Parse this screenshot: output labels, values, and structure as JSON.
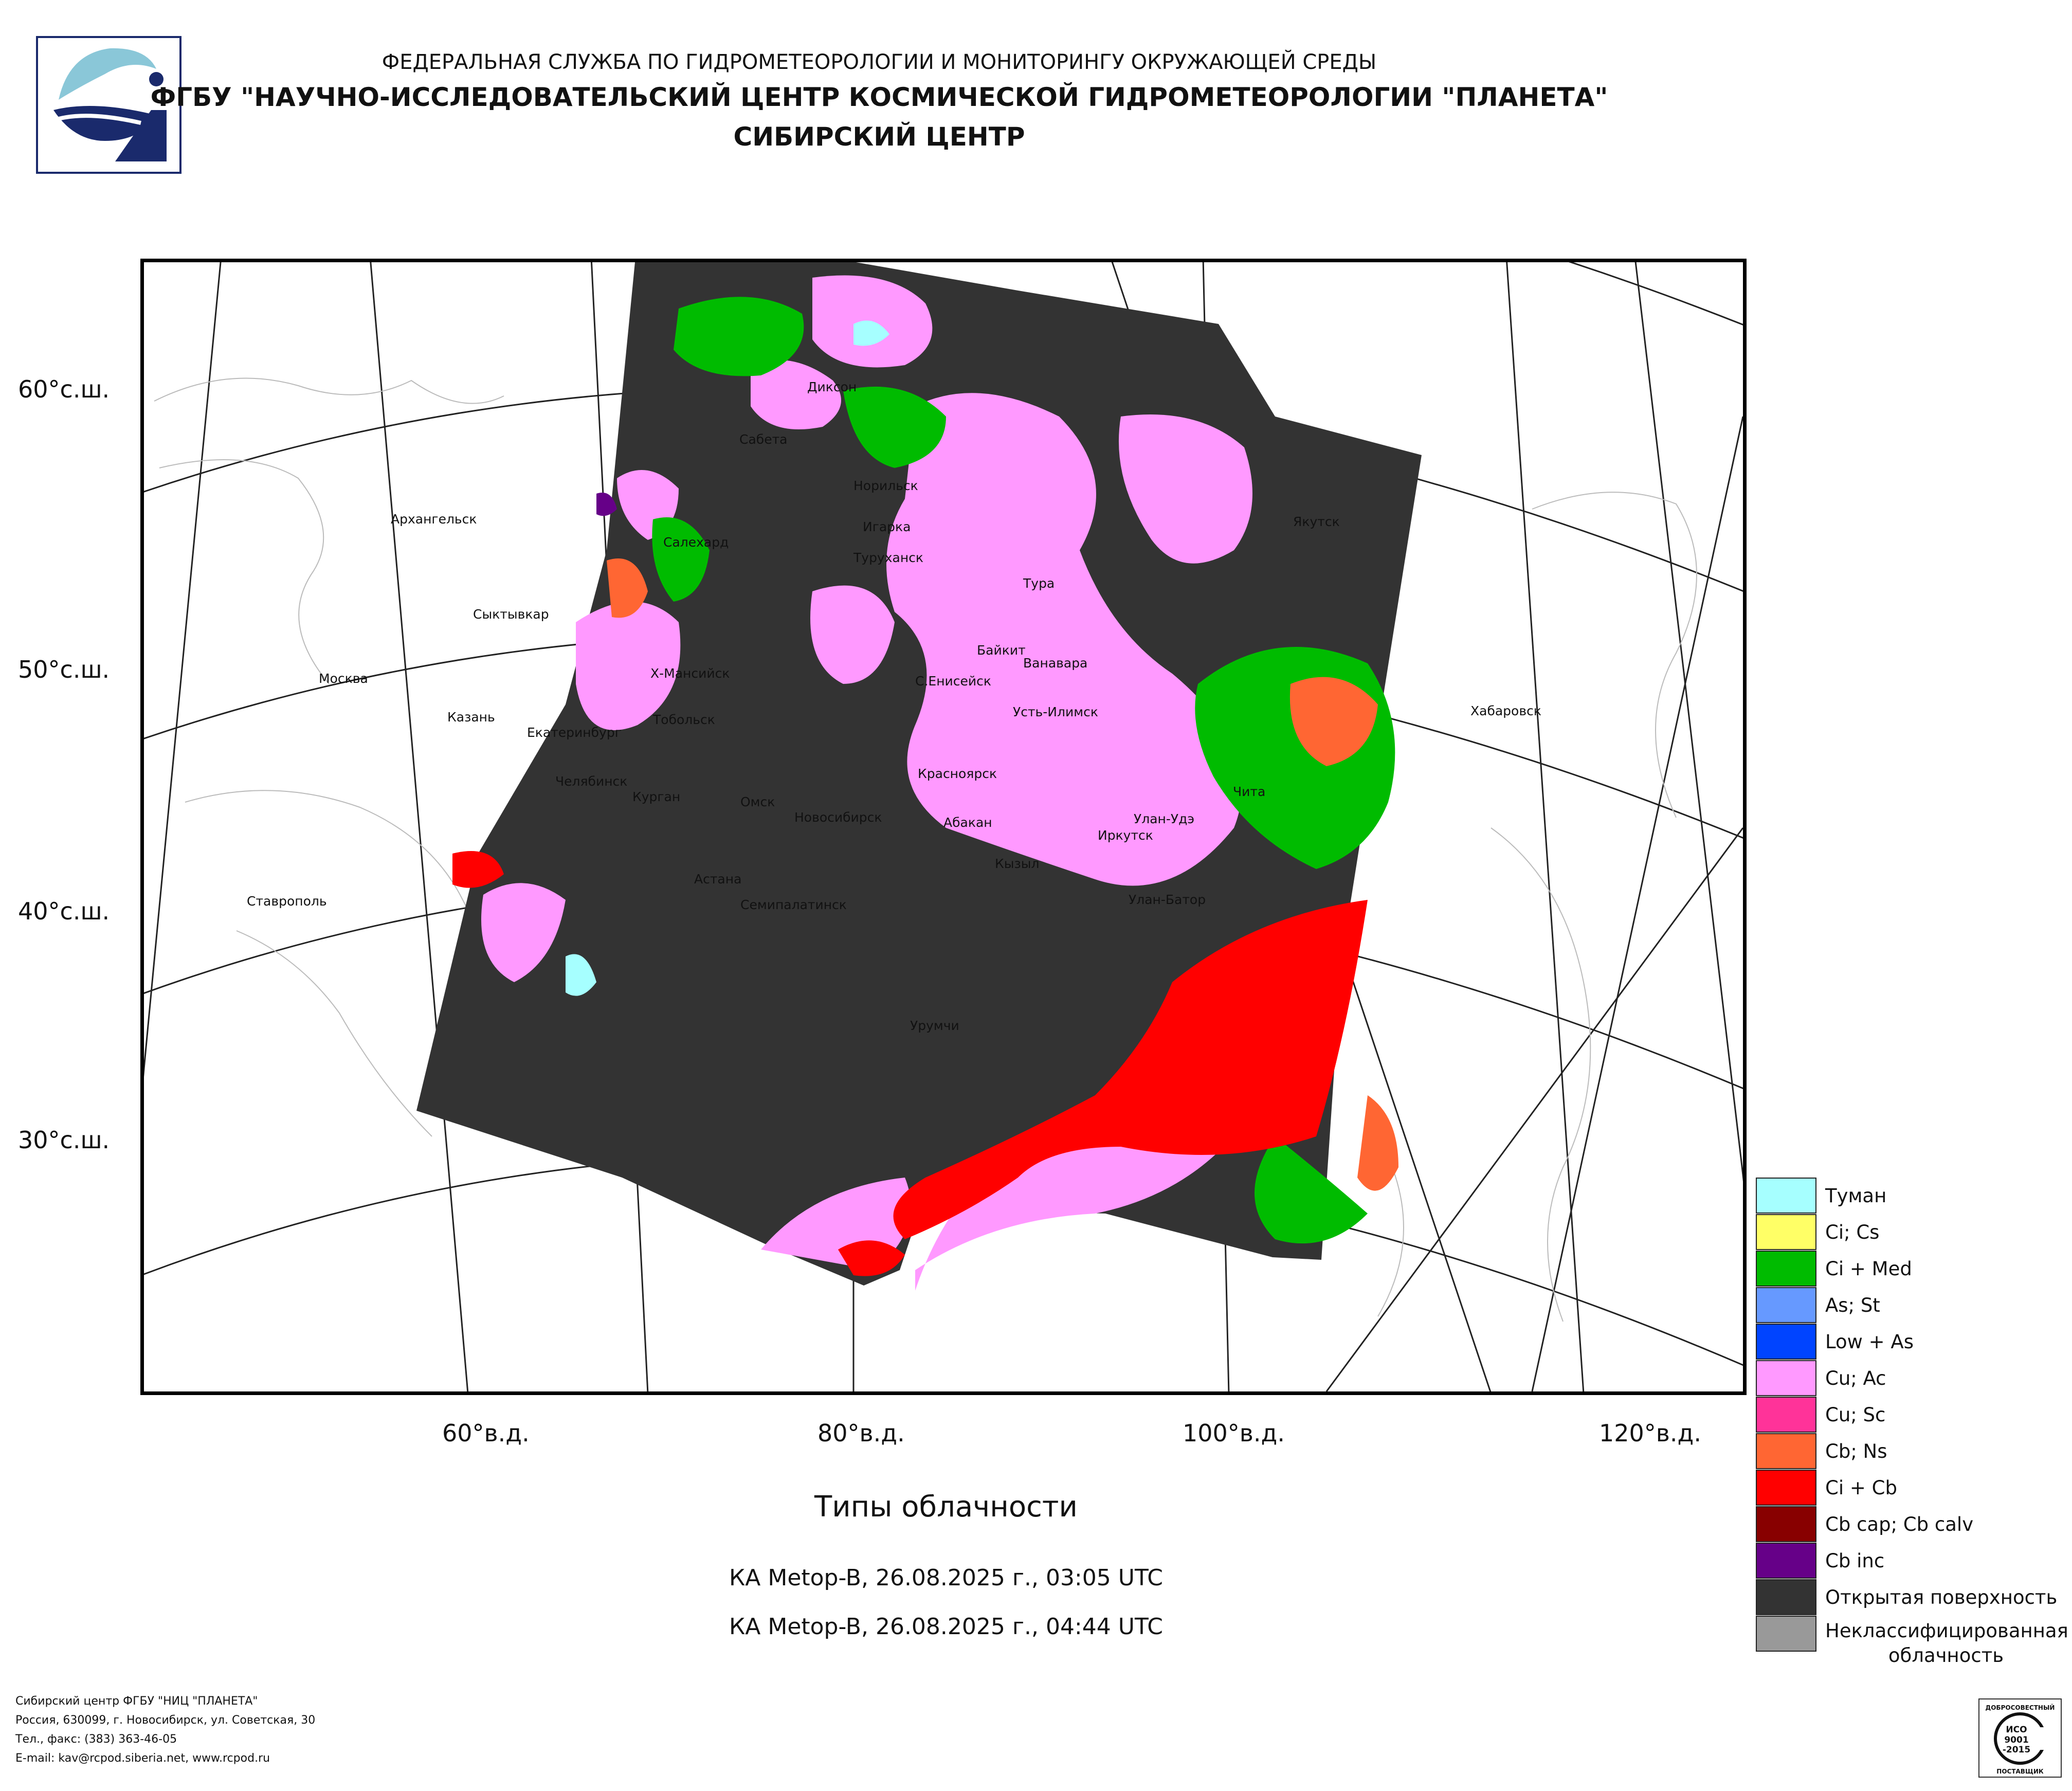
{
  "header": {
    "line1": "ФЕДЕРАЛЬНАЯ СЛУЖБА ПО ГИДРОМЕТЕОРОЛОГИИ И МОНИТОРИНГУ ОКРУЖАЮЩЕЙ СРЕДЫ",
    "line2": "ФГБУ \"НАУЧНО-ИССЛЕДОВАТЕЛЬСКИЙ ЦЕНТР КОСМИЧЕСКОЙ ГИДРОМЕТЕОРОЛОГИИ \"ПЛАНЕТА\"",
    "line3": "СИБИРСКИЙ ЦЕНТР"
  },
  "map": {
    "lat_labels": [
      "60°с.ш.",
      "50°с.ш.",
      "40°с.ш.",
      "30°с.ш."
    ],
    "lon_labels": [
      "60°в.д.",
      "80°в.д.",
      "100°в.д.",
      "120°в.д."
    ],
    "cities": [
      "Диксон",
      "Сабета",
      "Норильск",
      "Игарка",
      "Туруханск",
      "Салехард",
      "Архангельск",
      "Якутск",
      "Тура",
      "Сыктывкар",
      "Байкит",
      "Ванавара",
      "Москва",
      "Х-Мансийск",
      "С.Енисейск",
      "Усть-Илимск",
      "Казань",
      "Екатеринбург",
      "Тобольск",
      "Хабаровск",
      "Челябинск",
      "Курган",
      "Красноярск",
      "Омск",
      "Новосибирск",
      "Чита",
      "Абакан",
      "Улан-Удэ",
      "Иркутск",
      "Кызыл",
      "Астана",
      "Семипалатинск",
      "Улан-Батор",
      "Ставрополь",
      "Урумчи"
    ]
  },
  "title": "Типы облачности",
  "satellite": [
    "КА Metop-B, 26.08.2025 г., 03:05 UTC",
    "КА Metop-B, 26.08.2025 г., 04:44 UTC"
  ],
  "legend": [
    {
      "label": "Туман",
      "color": "#a6ffff"
    },
    {
      "label": "Ci; Cs",
      "color": "#ffff66"
    },
    {
      "label": "Ci + Med",
      "color": "#00bb00"
    },
    {
      "label": "As; St",
      "color": "#6699ff"
    },
    {
      "label": "Low + As",
      "color": "#0044ff"
    },
    {
      "label": "Cu; Ac",
      "color": "#ff99ff"
    },
    {
      "label": "Cu; Sc",
      "color": "#ff3399"
    },
    {
      "label": "Cb; Ns",
      "color": "#ff6633"
    },
    {
      "label": "Ci + Cb",
      "color": "#ff0000"
    },
    {
      "label": "Cb cap; Cb calv",
      "color": "#880000"
    },
    {
      "label": "Cb inc",
      "color": "#660088"
    },
    {
      "label": "Открытая поверхность",
      "color": "#333333"
    },
    {
      "label": "Неклассифицированная облачность",
      "color": "#999999"
    }
  ],
  "footer": [
    "Сибирский центр ФГБУ \"НИЦ \"ПЛАНЕТА\"",
    "Россия, 630099, г. Новосибирск, ул. Советская, 30",
    "Тел., факс: (383) 363-46-05",
    "E-mail: kav@rcpod.siberia.net, www.rcpod.ru"
  ],
  "iso_badge": {
    "top": "ДОБРОСОВЕСТНЫЙ",
    "line1": "ИСО",
    "line2": "9001",
    "line3": "-2015",
    "bottom": "ПОСТАВЩИК"
  }
}
